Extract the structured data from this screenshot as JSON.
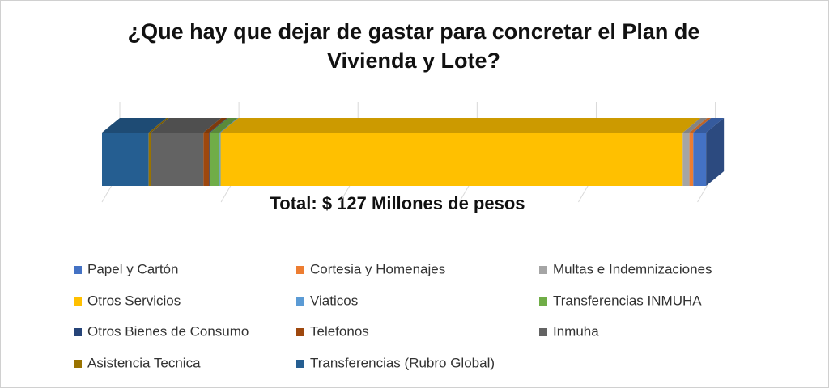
{
  "chart_data": {
    "type": "bar3d_stacked_horizontal",
    "title": "¿Que hay que dejar de gastar para concretar el Plan de Vivienda y Lote?",
    "subtitle": "Total: $ 127 Millones de pesos",
    "xlim": [
      0,
      130
    ],
    "xticks": [
      0,
      25,
      50,
      75,
      100,
      125
    ],
    "grid": true,
    "series": [
      {
        "name": "Papel y Cartón",
        "color": "#4472c4",
        "values": [
          2.7
        ]
      },
      {
        "name": "Cortesia y Homenajes",
        "color": "#ed7d31",
        "values": [
          0.8
        ]
      },
      {
        "name": "Multas e Indemnizaciones",
        "color": "#a5a5a5",
        "values": [
          1.4
        ]
      },
      {
        "name": "Otros Servicios",
        "color": "#ffc000",
        "values": [
          97
        ]
      },
      {
        "name": "Viaticos",
        "color": "#5b9bd5",
        "values": [
          0.2
        ]
      },
      {
        "name": "Transferencias INMUHA",
        "color": "#70ad47",
        "values": [
          2
        ]
      },
      {
        "name": "Otros Bienes de Consumo",
        "color": "#264478",
        "values": [
          0.2
        ]
      },
      {
        "name": " Telefonos",
        "color": "#9e480e",
        "values": [
          1.2
        ]
      },
      {
        "name": " Inmuha",
        "color": "#636363",
        "values": [
          11
        ]
      },
      {
        "name": "Asistencia Tecnica",
        "color": "#997300",
        "values": [
          0.5
        ]
      },
      {
        "name": "Transferencias (Rubro Global)",
        "color": "#255e91",
        "values": [
          9.8
        ]
      }
    ]
  }
}
